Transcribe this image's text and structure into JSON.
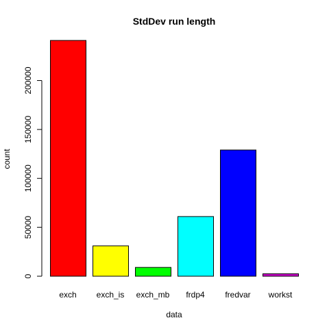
{
  "chart_data": {
    "type": "bar",
    "title": "StdDev run length",
    "xlabel": "data",
    "ylabel": "count",
    "categories": [
      "exch",
      "exch_is",
      "exch_mb",
      "frdp4",
      "fredvar",
      "workst"
    ],
    "values": [
      241000,
      31000,
      9000,
      61000,
      129000,
      2500
    ],
    "colors": [
      "#ff0000",
      "#ffff00",
      "#00ff00",
      "#00ffff",
      "#0000ff",
      "#cc00cc"
    ],
    "yticks": [
      0,
      50000,
      100000,
      150000,
      200000
    ],
    "ytick_labels": [
      "0",
      "50000",
      "100000",
      "150000",
      "200000"
    ],
    "ylim": [
      0,
      241000
    ],
    "grid": false,
    "legend": "none"
  }
}
